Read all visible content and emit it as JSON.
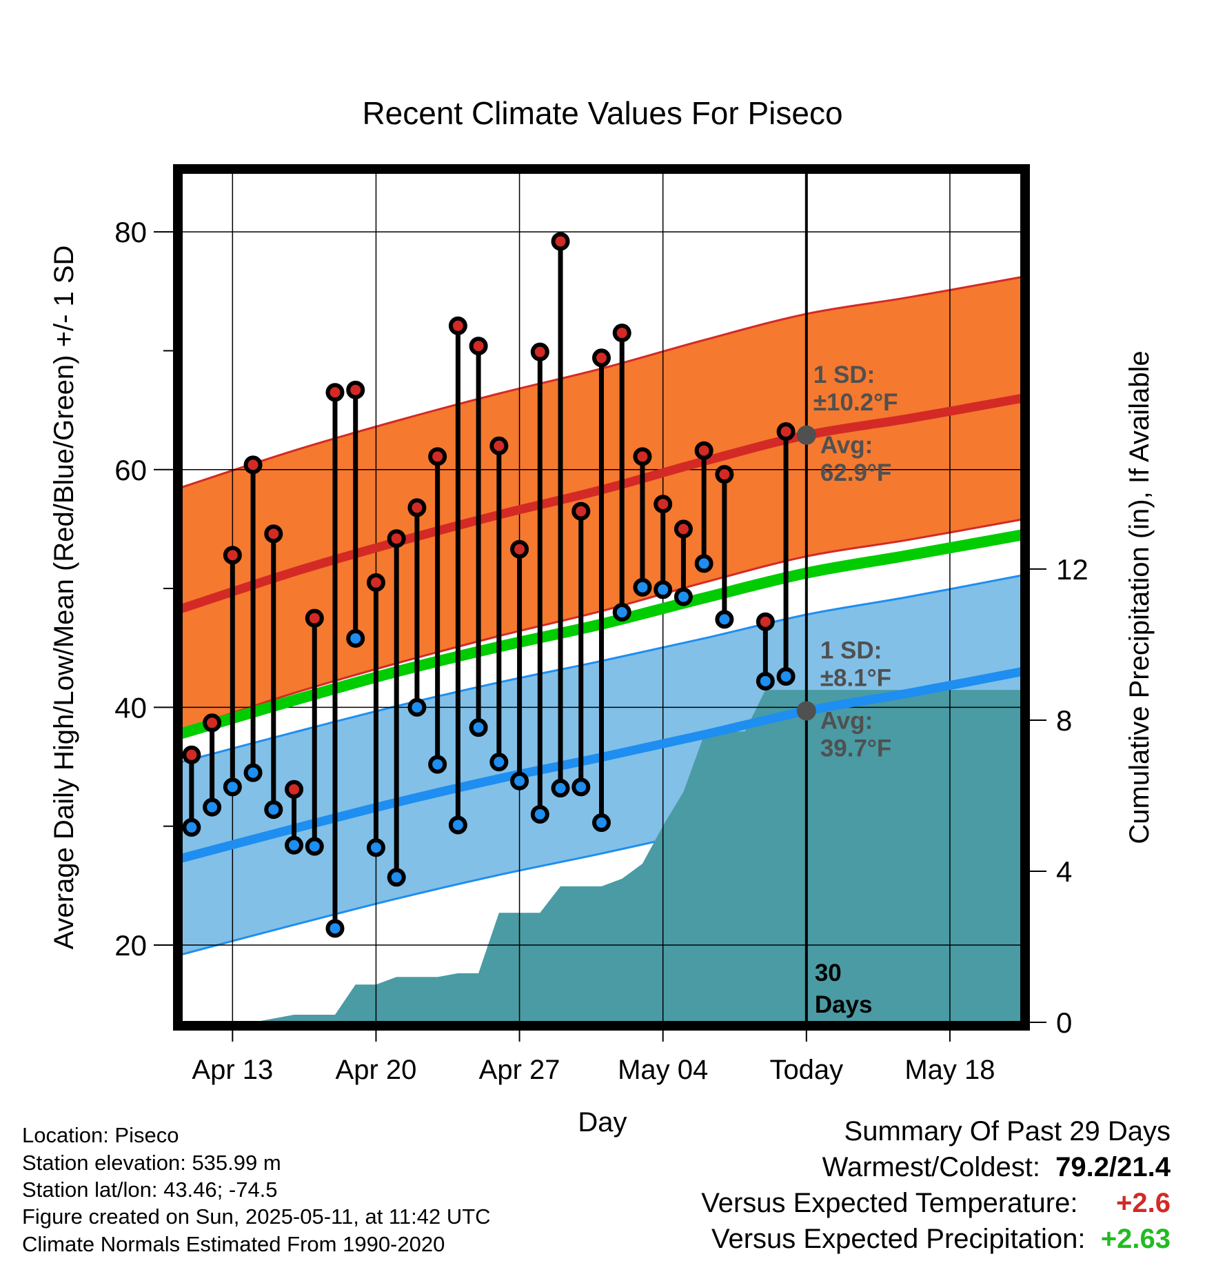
{
  "chart_data": {
    "type": "line",
    "title": "Recent Climate Values For Piseco",
    "xlabel": "Day",
    "ylabel": "Average Daily High/Low/Mean (Red/Blue/Green) +/- 1 SD",
    "y2label": "Cumulative Precipitation (in), If Available",
    "ylim": [
      13.5,
      85
    ],
    "y2lim": [
      0,
      22.5
    ],
    "yticks": [
      20,
      40,
      60,
      80
    ],
    "y2ticks": [
      0,
      4,
      8,
      12
    ],
    "xlim": [
      0.5,
      41.5
    ],
    "xticks": [
      {
        "pos": 3,
        "label": "Apr 13"
      },
      {
        "pos": 10,
        "label": "Apr 20"
      },
      {
        "pos": 17,
        "label": "Apr 27"
      },
      {
        "pos": 24,
        "label": "May 04"
      },
      {
        "pos": 31,
        "label": "Today"
      },
      {
        "pos": 38,
        "label": "May 18"
      }
    ],
    "today_index": 31,
    "today_annotation": [
      "30",
      "Days"
    ],
    "highs": [
      36.0,
      38.7,
      52.8,
      60.4,
      54.6,
      33.1,
      47.5,
      66.5,
      66.7,
      50.5,
      54.2,
      56.8,
      61.1,
      72.1,
      70.4,
      62.0,
      53.3,
      69.9,
      79.2,
      56.5,
      69.4,
      71.5,
      61.1,
      57.1,
      55.0,
      61.6,
      59.6,
      null,
      47.2,
      63.2
    ],
    "lows": [
      29.9,
      31.6,
      33.3,
      34.5,
      31.4,
      28.4,
      28.3,
      21.4,
      45.8,
      28.2,
      25.7,
      40.0,
      35.2,
      30.1,
      38.3,
      35.4,
      33.8,
      31.0,
      33.2,
      33.3,
      30.3,
      48.0,
      50.1,
      49.9,
      49.3,
      52.1,
      47.4,
      null,
      42.2,
      42.6
    ],
    "normal_x": [
      0.5,
      6,
      11,
      16,
      21,
      26,
      31,
      36,
      41.5
    ],
    "normal_high": [
      48.3,
      51.4,
      53.9,
      56.2,
      58.3,
      60.7,
      62.9,
      64.3,
      66.0
    ],
    "normal_low": [
      27.3,
      29.8,
      32.0,
      34.0,
      35.8,
      37.7,
      39.7,
      41.2,
      43.0
    ],
    "normal_mean": [
      37.8,
      40.6,
      43.0,
      45.1,
      47.0,
      49.2,
      51.3,
      52.8,
      54.5
    ],
    "sd_high": 10.2,
    "sd_low": 8.1,
    "precip_cumulative": [
      0.0,
      0.0,
      0.0,
      0.0,
      0.1,
      0.2,
      0.2,
      0.2,
      1.0,
      1.0,
      1.2,
      1.2,
      1.2,
      1.3,
      1.3,
      2.9,
      2.9,
      2.9,
      3.6,
      3.6,
      3.6,
      3.8,
      4.2,
      5.2,
      6.1,
      7.6,
      7.7,
      7.7,
      8.8,
      8.8,
      8.8
    ],
    "annotations": {
      "high_sd_label": "1 SD:",
      "high_sd_value": "±10.2°F",
      "high_avg_label": "Avg:",
      "high_avg_value": "62.9°F",
      "low_sd_label": "1 SD:",
      "low_sd_value": "±8.1°F",
      "low_avg_label": "Avg:",
      "low_avg_value": "39.7°F"
    },
    "colors": {
      "high_band": "#f5792f",
      "high_line": "#d32a26",
      "low_band": "#82c0e8",
      "low_line": "#1e8ef0",
      "mean_line": "#00cc00",
      "precip": "#4a9ba4",
      "high_dot": "#d32a26",
      "low_dot": "#1e8ef0",
      "annotation": "#505050"
    }
  },
  "info": {
    "location": "Location: Piseco",
    "elevation": "Station elevation: 535.99 m",
    "latlon": "Station lat/lon: 43.46; -74.5",
    "created": "Figure created on Sun, 2025-05-11, at 11:42 UTC",
    "normals": "Climate Normals Estimated From 1990-2020"
  },
  "summary": {
    "title": "Summary Of Past 29 Days",
    "warm_cold_label": "Warmest/Coldest:",
    "warm_cold_value": "79.2/21.4",
    "temp_label": "Versus Expected Temperature:",
    "temp_value": "+2.6",
    "temp_color": "#d32a26",
    "precip_label": "Versus Expected Precipitation:",
    "precip_value": "+2.63",
    "precip_color": "#22bb22"
  }
}
